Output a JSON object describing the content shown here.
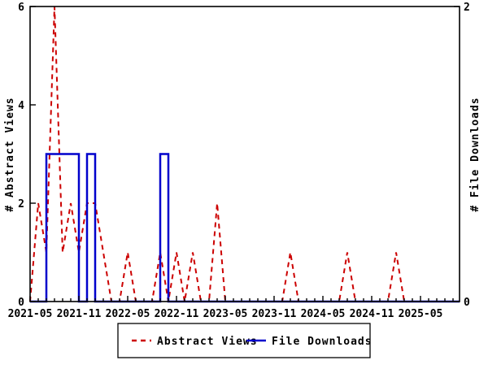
{
  "chart_data": {
    "type": "line",
    "title": "",
    "x": [
      "2021-05",
      "2021-06",
      "2021-07",
      "2021-08",
      "2021-09",
      "2021-10",
      "2021-11",
      "2021-12",
      "2022-01",
      "2022-02",
      "2022-03",
      "2022-04",
      "2022-05",
      "2022-06",
      "2022-07",
      "2022-08",
      "2022-09",
      "2022-10",
      "2022-11",
      "2022-12",
      "2023-01",
      "2023-02",
      "2023-03",
      "2023-04",
      "2023-05",
      "2023-06",
      "2023-07",
      "2023-08",
      "2023-09",
      "2023-10",
      "2023-11",
      "2023-12",
      "2024-01",
      "2024-02",
      "2024-03",
      "2024-04",
      "2024-05",
      "2024-06",
      "2024-07",
      "2024-08",
      "2024-09",
      "2024-10",
      "2024-11",
      "2024-12",
      "2025-01",
      "2025-02",
      "2025-03",
      "2025-04",
      "2025-05",
      "2025-06",
      "2025-07",
      "2025-08",
      "2025-09"
    ],
    "series": [
      {
        "name": "Abstract Views",
        "axis": "left",
        "color": "#cc0000",
        "style": "dashed",
        "line_mode": "lines",
        "values": [
          0,
          2,
          1,
          6,
          1,
          2,
          1,
          2,
          2,
          1,
          0,
          0,
          1,
          0,
          0,
          0,
          1,
          0,
          1,
          0,
          1,
          0,
          0,
          2,
          0,
          0,
          0,
          0,
          0,
          0,
          0,
          0,
          1,
          0,
          0,
          0,
          0,
          0,
          0,
          1,
          0,
          0,
          0,
          0,
          0,
          1,
          0,
          0,
          0,
          0,
          0,
          0,
          0
        ]
      },
      {
        "name": "File Downloads",
        "axis": "right",
        "color": "#0000cc",
        "style": "solid",
        "line_mode": "steps",
        "values": [
          0,
          0,
          1,
          1,
          1,
          1,
          0,
          1,
          0,
          0,
          0,
          0,
          0,
          0,
          0,
          0,
          1,
          0,
          0,
          0,
          0,
          0,
          0,
          0,
          0,
          0,
          0,
          0,
          0,
          0,
          0,
          0,
          0,
          0,
          0,
          0,
          0,
          0,
          0,
          0,
          0,
          0,
          0,
          0,
          0,
          0,
          0,
          0,
          0,
          0,
          0,
          0,
          0
        ]
      }
    ],
    "ylabel_left": "# Abstract Views",
    "ylabel_right": "# File Downloads",
    "yleft_range": [
      0,
      6
    ],
    "yleft_ticks": [
      0,
      2,
      4,
      6
    ],
    "yright_range": [
      0,
      2
    ],
    "yright_ticks": [
      0,
      2
    ],
    "x_major_ticks": [
      "2021-05",
      "2021-11",
      "2022-05",
      "2022-11",
      "2023-05",
      "2023-11",
      "2024-05",
      "2024-11",
      "2025-05"
    ],
    "grid": false,
    "legend": {
      "position": "bottom-center",
      "entries": [
        {
          "label": "Abstract Views",
          "color": "#cc0000",
          "style": "dashed"
        },
        {
          "label": "File Downloads",
          "color": "#0000cc",
          "style": "solid"
        }
      ]
    }
  }
}
